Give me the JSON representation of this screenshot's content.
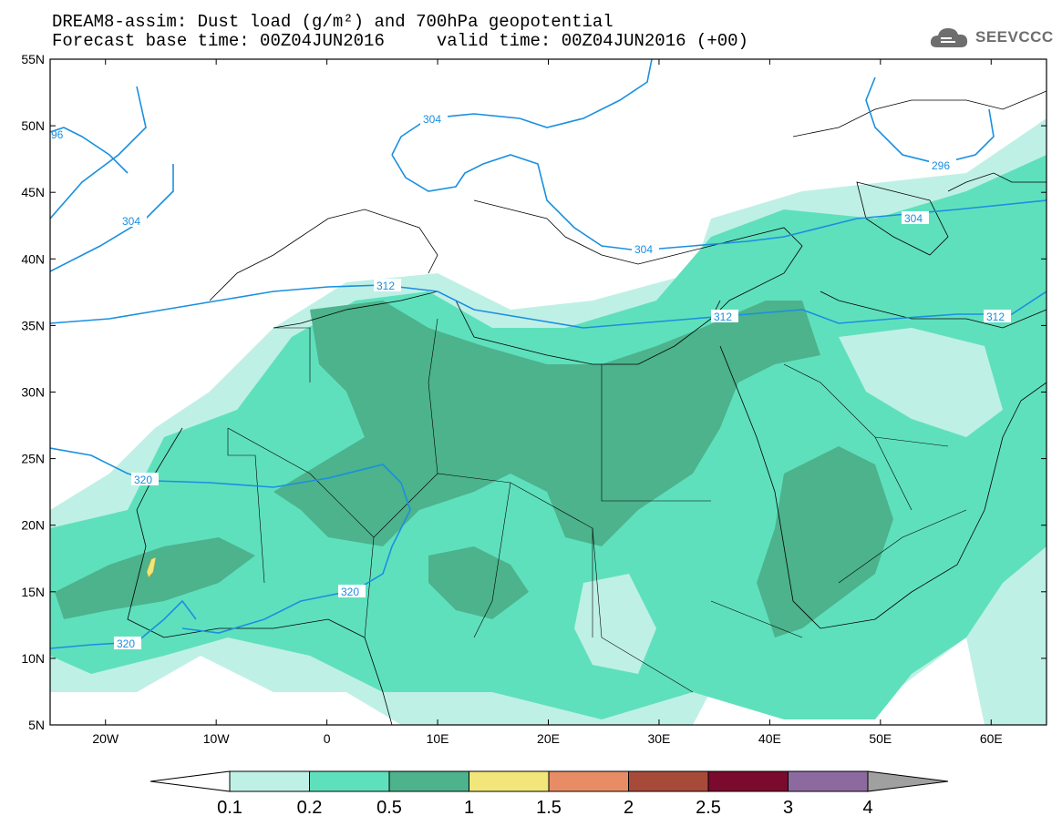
{
  "header": {
    "line1": "DREAM8-assim: Dust load (g/m²) and 700hPa geopotential",
    "line2": "Forecast base time: 00Z04JUN2016     valid time: 00Z04JUN2016 (+00)"
  },
  "logo": {
    "text": "SEEVCCC",
    "icon": "cloud-icon"
  },
  "map": {
    "lat_range": [
      5,
      55
    ],
    "lon_range": [
      -25,
      65
    ],
    "lat_labels": [
      "55N",
      "50N",
      "45N",
      "40N",
      "35N",
      "30N",
      "25N",
      "20N",
      "15N",
      "10N",
      "5N"
    ],
    "lon_labels": [
      "20W",
      "10W",
      "0",
      "10E",
      "20E",
      "30E",
      "40E",
      "50E",
      "60E"
    ],
    "contour_color": "#1a8fe0",
    "contour_labels": [
      {
        "text": "96"
      },
      {
        "text": "304"
      },
      {
        "text": "304"
      },
      {
        "text": "296"
      },
      {
        "text": "304"
      },
      {
        "text": "304"
      },
      {
        "text": "312"
      },
      {
        "text": "312"
      },
      {
        "text": "312"
      },
      {
        "text": "320"
      },
      {
        "text": "320"
      },
      {
        "text": "320"
      }
    ]
  },
  "colorbar": {
    "labels": [
      "0.1",
      "0.2",
      "0.5",
      "1",
      "1.5",
      "2",
      "2.5",
      "3",
      "4"
    ],
    "colors": [
      "#bff0e6",
      "#5fe0bc",
      "#4cb38c",
      "#f2e67a",
      "#e88c66",
      "#a84a3a",
      "#7a0a2e",
      "#8c6aa0",
      "#a0a0a0"
    ],
    "arrow_left_color": "#ffffff",
    "arrow_right_color": "#a0a0a0"
  }
}
